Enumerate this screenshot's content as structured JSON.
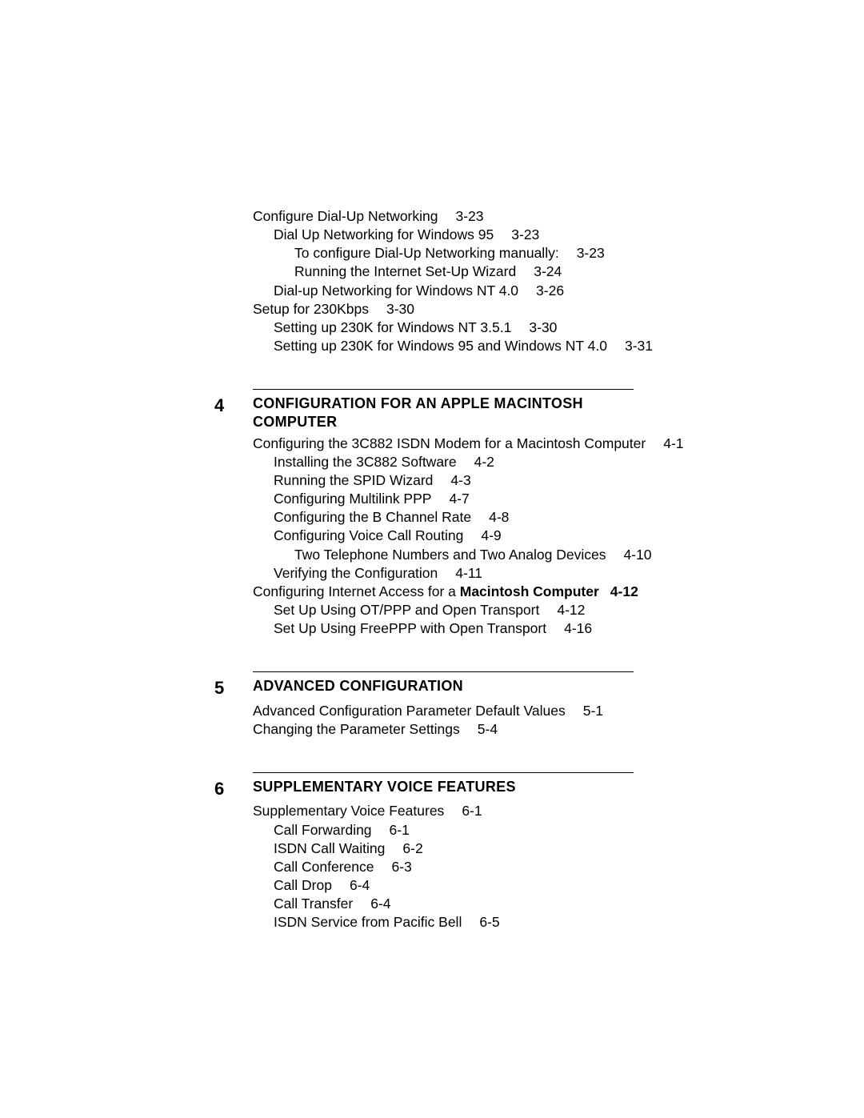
{
  "continuation": [
    {
      "indent": 0,
      "text": "Configure Dial-Up Networking",
      "page": "3-23"
    },
    {
      "indent": 1,
      "text": "Dial Up Networking for Windows 95",
      "page": "3-23"
    },
    {
      "indent": 2,
      "text": "To configure Dial-Up Networking manually:",
      "page": "3-23"
    },
    {
      "indent": 2,
      "text": "Running the Internet Set-Up Wizard",
      "page": "3-24"
    },
    {
      "indent": 1,
      "text": "Dial-up Networking for Windows NT 4.0",
      "page": "3-26"
    },
    {
      "indent": 0,
      "text": "Setup for 230Kbps",
      "page": "3-30"
    },
    {
      "indent": 1,
      "text": "Setting up 230K for Windows NT 3.5.1",
      "page": "3-30"
    },
    {
      "indent": 1,
      "text": "Setting up 230K for Windows 95 and Windows NT 4.0",
      "page": "3-31"
    }
  ],
  "sections": [
    {
      "number": "4",
      "title_caps": "CONFIGURATION FOR AN APPLE MACINTOSH COMPUTER",
      "lines": [
        {
          "indent": 0,
          "text": "Configuring the 3C882 ISDN Modem for a Macintosh Computer",
          "page": "4-1"
        },
        {
          "indent": 1,
          "text": "Installing the 3C882 Software",
          "page": "4-2"
        },
        {
          "indent": 1,
          "text": "Running the SPID Wizard",
          "page": "4-3"
        },
        {
          "indent": 1,
          "text": "Configuring Multilink PPP",
          "page": "4-7"
        },
        {
          "indent": 1,
          "text": "Configuring the B Channel Rate",
          "page": "4-8"
        },
        {
          "indent": 1,
          "text": "Configuring Voice Call Routing",
          "page": "4-9"
        },
        {
          "indent": 2,
          "text": "Two Telephone Numbers and Two Analog Devices",
          "page": "4-10"
        },
        {
          "indent": 1,
          "text": "Verifying the Configuration",
          "page": "4-11"
        },
        {
          "indent": 0,
          "pre": "Configuring Internet Access for a ",
          "bold_text": "Macintosh Computer",
          "bold_page": "4-12",
          "page_left_shift": true
        },
        {
          "indent": 1,
          "text": "Set Up Using OT/PPP and Open Transport",
          "page": "4-12"
        },
        {
          "indent": 1,
          "text": "Set Up Using FreePPP with Open Transport",
          "page": "4-16"
        }
      ]
    },
    {
      "number": "5",
      "title_caps": "ADVANCED CONFIGURATION",
      "lines": [
        {
          "indent": 0,
          "text": "Advanced Configuration Parameter Default Values",
          "page": "5-1"
        },
        {
          "indent": 0,
          "text": "Changing the Parameter Settings",
          "page": "5-4"
        }
      ]
    },
    {
      "number": "6",
      "title_caps": "SUPPLEMENTARY VOICE FEATURES",
      "lines": [
        {
          "indent": 0,
          "text": "Supplementary Voice Features",
          "page": "6-1"
        },
        {
          "indent": 1,
          "text": "Call Forwarding",
          "page": "6-1"
        },
        {
          "indent": 1,
          "text": "ISDN Call Waiting",
          "page": "6-2"
        },
        {
          "indent": 1,
          "text": "Call Conference",
          "page": "6-3"
        },
        {
          "indent": 1,
          "text": "Call Drop",
          "page": "6-4"
        },
        {
          "indent": 1,
          "text": "Call Transfer",
          "page": "6-4"
        },
        {
          "indent": 1,
          "text": "ISDN Service from Pacific Bell",
          "page": "6-5"
        }
      ]
    }
  ]
}
